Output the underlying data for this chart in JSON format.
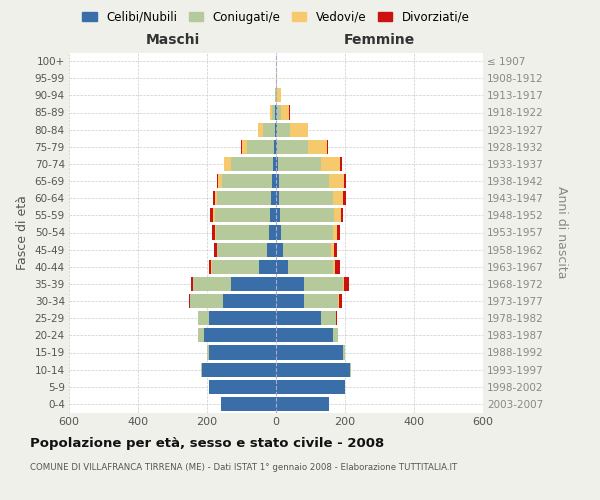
{
  "age_groups": [
    "0-4",
    "5-9",
    "10-14",
    "15-19",
    "20-24",
    "25-29",
    "30-34",
    "35-39",
    "40-44",
    "45-49",
    "50-54",
    "55-59",
    "60-64",
    "65-69",
    "70-74",
    "75-79",
    "80-84",
    "85-89",
    "90-94",
    "95-99",
    "100+"
  ],
  "birth_years": [
    "2003-2007",
    "1998-2002",
    "1993-1997",
    "1988-1992",
    "1983-1987",
    "1978-1982",
    "1973-1977",
    "1968-1972",
    "1963-1967",
    "1958-1962",
    "1953-1957",
    "1948-1952",
    "1943-1947",
    "1938-1942",
    "1933-1937",
    "1928-1932",
    "1923-1927",
    "1918-1922",
    "1913-1917",
    "1908-1912",
    "≤ 1907"
  ],
  "males": {
    "celibi": [
      160,
      195,
      215,
      195,
      210,
      195,
      155,
      130,
      50,
      25,
      20,
      18,
      15,
      12,
      10,
      5,
      3,
      2,
      1,
      0,
      0
    ],
    "coniugati": [
      0,
      0,
      2,
      5,
      15,
      30,
      95,
      110,
      135,
      145,
      155,
      160,
      155,
      145,
      120,
      80,
      35,
      10,
      2,
      0,
      0
    ],
    "vedovi": [
      0,
      0,
      0,
      0,
      0,
      0,
      0,
      1,
      2,
      2,
      3,
      5,
      8,
      10,
      20,
      15,
      15,
      5,
      1,
      0,
      0
    ],
    "divorziati": [
      0,
      0,
      0,
      0,
      0,
      2,
      2,
      5,
      8,
      8,
      8,
      8,
      5,
      3,
      2,
      1,
      0,
      0,
      0,
      0,
      0
    ]
  },
  "females": {
    "nubili": [
      155,
      200,
      215,
      195,
      165,
      130,
      80,
      80,
      35,
      20,
      15,
      12,
      10,
      8,
      5,
      3,
      2,
      2,
      1,
      0,
      0
    ],
    "coniugate": [
      0,
      0,
      2,
      5,
      15,
      45,
      100,
      115,
      130,
      140,
      150,
      155,
      155,
      145,
      125,
      90,
      40,
      12,
      3,
      1,
      0
    ],
    "vedove": [
      0,
      0,
      0,
      0,
      0,
      0,
      2,
      3,
      5,
      8,
      12,
      20,
      30,
      45,
      55,
      55,
      50,
      25,
      10,
      2,
      0
    ],
    "divorziate": [
      0,
      0,
      0,
      0,
      0,
      2,
      8,
      15,
      15,
      10,
      8,
      8,
      8,
      5,
      5,
      3,
      2,
      2,
      0,
      0,
      0
    ]
  },
  "colors": {
    "celibi": "#3a6ea8",
    "coniugati": "#b5c99a",
    "vedovi": "#f5c96c",
    "divorziati": "#cc1111"
  },
  "title": "Popolazione per età, sesso e stato civile - 2008",
  "subtitle": "COMUNE DI VILLAFRANCA TIRRENA (ME) - Dati ISTAT 1° gennaio 2008 - Elaborazione TUTTITALIA.IT",
  "xlabel_left": "Maschi",
  "xlabel_right": "Femmine",
  "ylabel_left": "Fasce di età",
  "ylabel_right": "Anni di nascita",
  "xlim": 600,
  "background_color": "#f0f0eb",
  "plot_bg": "#ffffff",
  "legend_labels": [
    "Celibi/Nubili",
    "Coniugati/e",
    "Vedovi/e",
    "Divorziati/e"
  ]
}
